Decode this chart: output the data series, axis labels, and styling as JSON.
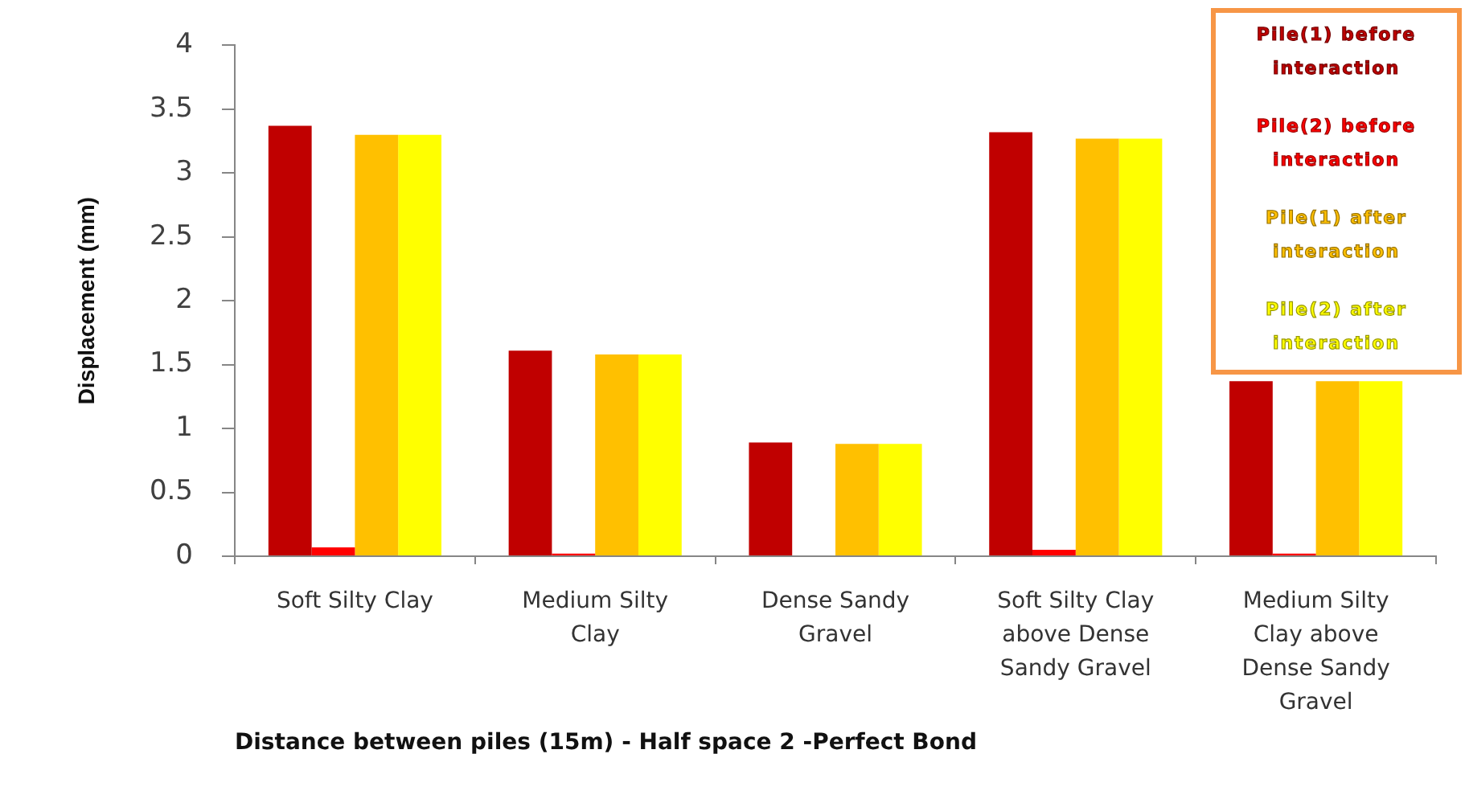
{
  "chart_data": {
    "type": "bar",
    "xlabel": "Distance between piles (15m) - Half space 2 -Perfect Bond",
    "ylabel": "Displacement (mm)",
    "categories": [
      "Soft Silty Clay",
      "Medium Silty Clay",
      "Dense Sandy Gravel",
      "Soft Silty Clay above Dense Sandy Gravel",
      "Medium Silty Clay above Dense Sandy Gravel"
    ],
    "series": [
      {
        "name": "Pile(1) before interaction",
        "color": "#c00000",
        "values": [
          3.37,
          1.61,
          0.89,
          3.32,
          1.37
        ]
      },
      {
        "name": "Pile(2) before interaction",
        "color": "#ff0000",
        "values": [
          0.07,
          0.02,
          0,
          0.05,
          0.02
        ]
      },
      {
        "name": "Pile(1) after interaction",
        "color": "#ffc000",
        "values": [
          3.3,
          1.58,
          0.88,
          3.27,
          1.37
        ]
      },
      {
        "name": "Pile(2) after interaction",
        "color": "#ffff00",
        "values": [
          3.3,
          1.58,
          0.88,
          3.27,
          1.37
        ]
      }
    ],
    "ylim": [
      0,
      4
    ],
    "yticks": [
      0,
      0.5,
      1,
      1.5,
      2,
      2.5,
      3,
      3.5,
      4
    ],
    "grid": false,
    "legend": "top right"
  }
}
